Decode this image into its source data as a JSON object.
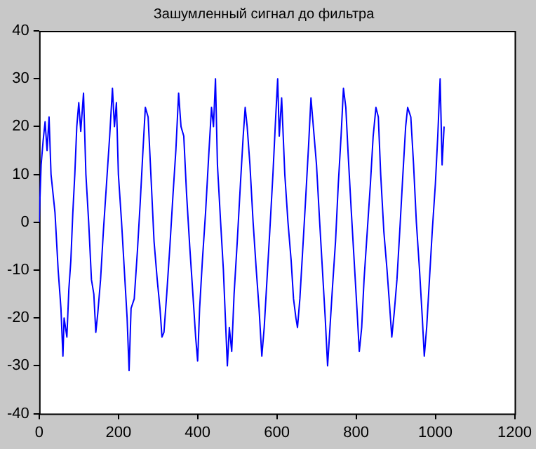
{
  "chart_data": {
    "type": "line",
    "title": "Зашумленный сигнал до фильтра",
    "series": [
      {
        "color": "#0000ff",
        "x": [
          0,
          5,
          10,
          15,
          20,
          25,
          30,
          40,
          48,
          55,
          60,
          63,
          70,
          75,
          80,
          85,
          90,
          95,
          100,
          105,
          112,
          118,
          125,
          132,
          138,
          143,
          148,
          155,
          162,
          170,
          178,
          185,
          190,
          195,
          200,
          208,
          215,
          222,
          227,
          232,
          240,
          248,
          255,
          262,
          268,
          275,
          282,
          290,
          298,
          305,
          310,
          315,
          322,
          330,
          338,
          345,
          352,
          358,
          365,
          372,
          380,
          388,
          395,
          400,
          405,
          412,
          420,
          428,
          435,
          440,
          445,
          450,
          458,
          465,
          470,
          475,
          480,
          486,
          492,
          500,
          508,
          515,
          520,
          525,
          532,
          540,
          548,
          555,
          562,
          568,
          575,
          582,
          590,
          597,
          602,
          606,
          612,
          620,
          628,
          636,
          642,
          648,
          652,
          658,
          665,
          672,
          680,
          686,
          692,
          700,
          708,
          715,
          722,
          728,
          734,
          740,
          748,
          755,
          762,
          768,
          774,
          780,
          788,
          795,
          802,
          808,
          814,
          820,
          828,
          836,
          843,
          850,
          856,
          862,
          870,
          878,
          885,
          890,
          896,
          903,
          910,
          918,
          925,
          930,
          938,
          945,
          952,
          960,
          967,
          972,
          978,
          985,
          992,
          1000,
          1006,
          1012,
          1017,
          1022
        ],
        "values": [
          0,
          12,
          17,
          21,
          15,
          22,
          10,
          2,
          -10,
          -18,
          -28,
          -20,
          -24,
          -14,
          -8,
          2,
          10,
          20,
          25,
          19,
          27,
          10,
          0,
          -12,
          -15,
          -23,
          -19,
          -12,
          -2,
          8,
          18,
          28,
          20,
          25,
          10,
          0,
          -10,
          -20,
          -31,
          -18,
          -16,
          -6,
          4,
          15,
          24,
          22,
          10,
          -4,
          -12,
          -18,
          -24,
          -23,
          -15,
          -5,
          6,
          15,
          27,
          20,
          18,
          6,
          -5,
          -15,
          -24,
          -29,
          -18,
          -8,
          2,
          14,
          24,
          20,
          30,
          12,
          0,
          -10,
          -20,
          -30,
          -22,
          -27,
          -15,
          -4,
          8,
          18,
          24,
          20,
          12,
          0,
          -10,
          -18,
          -28,
          -22,
          -12,
          -2,
          10,
          22,
          30,
          18,
          26,
          10,
          0,
          -8,
          -16,
          -20,
          -22,
          -16,
          -6,
          4,
          16,
          26,
          20,
          12,
          0,
          -10,
          -20,
          -30,
          -22,
          -14,
          -4,
          8,
          18,
          28,
          24,
          14,
          2,
          -8,
          -18,
          -27,
          -22,
          -12,
          -2,
          8,
          18,
          24,
          22,
          10,
          -2,
          -10,
          -18,
          -24,
          -19,
          -12,
          -2,
          10,
          20,
          24,
          22,
          12,
          0,
          -10,
          -20,
          -28,
          -22,
          -12,
          -2,
          8,
          18,
          30,
          12,
          20
        ]
      }
    ],
    "xlim": [
      0,
      1200
    ],
    "xticks": [
      0,
      200,
      400,
      600,
      800,
      1000,
      1200
    ],
    "ylim": [
      -40,
      40
    ],
    "yticks": [
      -40,
      -30,
      -20,
      -10,
      0,
      10,
      20,
      30,
      40
    ],
    "grid": false,
    "legend": false,
    "marker": "none",
    "line_style": "solid"
  }
}
